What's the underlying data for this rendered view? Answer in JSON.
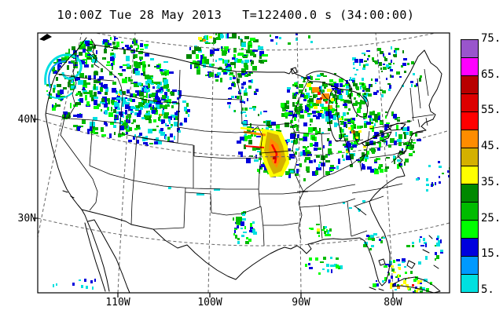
{
  "title": {
    "timestamp": "10:00Z Tue 28 May 2013",
    "forecast": "T=122400.0 s (34:00:00)"
  },
  "map": {
    "lat_ticks": [
      "40N",
      "30N"
    ],
    "lon_ticks": [
      "110W",
      "100W",
      "90W",
      "80W"
    ]
  },
  "colorbar": {
    "tick_labels_top_to_bottom": [
      "75.",
      "65.",
      "55.",
      "45.",
      "35.",
      "25.",
      "15.",
      "5."
    ],
    "cell_colors_top_to_bottom": [
      "#9955CC",
      "#FF00FF",
      "#B80000",
      "#DC0000",
      "#FF0000",
      "#FF8C00",
      "#D4B000",
      "#FFFF00",
      "#008800",
      "#00BB00",
      "#00FF00",
      "#0000DD",
      "#0099FF",
      "#00E0E0"
    ],
    "min_value": 5,
    "max_value": 75,
    "step": 5
  },
  "palette": {
    "cyan": "#00E0E0",
    "lightblue": "#0099FF",
    "blue": "#0000DD",
    "brightgreen": "#00FF00",
    "green": "#00BB00",
    "darkgreen": "#008800",
    "yellow": "#FFFF00",
    "gold": "#D4B000",
    "orange": "#FF8C00",
    "red": "#FF0000",
    "red2": "#DC0000",
    "darkred": "#B80000",
    "magenta": "#FF00FF",
    "purple": "#9955CC",
    "frame": "#000000",
    "graticule": "#666666"
  }
}
